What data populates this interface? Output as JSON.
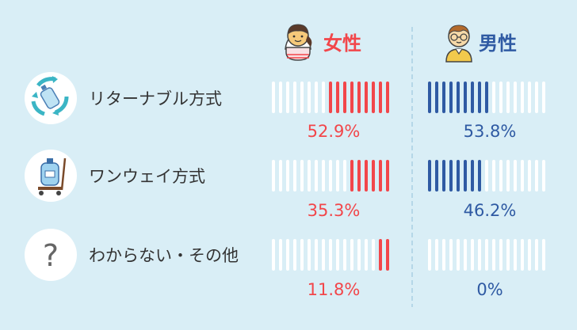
{
  "colors": {
    "background": "#d9eef6",
    "female_accent": "#f2464a",
    "male_accent": "#2f5aa3",
    "bar_empty": "#ffffff",
    "label_text": "#333333",
    "divider": "#a9cfe4"
  },
  "headers": {
    "female": "女性",
    "male": "男性"
  },
  "chart_data": {
    "type": "bar",
    "categories": [
      "リターナブル方式",
      "ワンウェイ方式",
      "わからない・その他"
    ],
    "category_icons": [
      "recycle-bottle-icon",
      "water-jug-cart-icon",
      "question-mark-icon"
    ],
    "series": [
      {
        "name": "女性",
        "values": [
          52.9,
          35.3,
          11.8
        ],
        "labels": [
          "52.9%",
          "35.3%",
          "11.8%"
        ]
      },
      {
        "name": "男性",
        "values": [
          53.8,
          46.2,
          0
        ],
        "labels": [
          "53.8%",
          "46.2%",
          "0%"
        ]
      }
    ],
    "ylim": [
      0,
      100
    ],
    "unit": "%",
    "segments_per_bar": 17
  }
}
